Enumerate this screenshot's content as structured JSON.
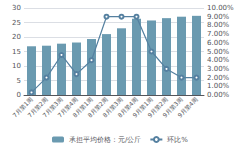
{
  "chart_data": {
    "type": "bar",
    "categories": [
      "7月第1周",
      "7月第2周",
      "7月第3周",
      "7月第4周",
      "8月第1周",
      "8月第2周",
      "8月第3周",
      "8月第4周",
      "9月第1周",
      "9月第2周",
      "9月第3周",
      "9月第4周"
    ],
    "series": [
      {
        "name": "承担平均价格：元/公斤",
        "type": "bar",
        "color": "#6a9ab0",
        "values": [
          16.8,
          17.0,
          17.7,
          18.1,
          19.3,
          21.0,
          23.0,
          26.3,
          25.7,
          26.5,
          27.0,
          27.3
        ]
      },
      {
        "name": "环比%",
        "type": "line",
        "axis": "y2",
        "color": "#5580a0",
        "marker": "circle",
        "values": [
          0.3,
          2.0,
          4.6,
          2.4,
          4.0,
          9.0,
          9.0,
          9.0,
          5.0,
          3.0,
          2.0,
          2.0
        ]
      }
    ],
    "ylim": [
      0,
      30
    ],
    "yticks": [
      0,
      5,
      10,
      15,
      20,
      25,
      30
    ],
    "y2lim": [
      0,
      10
    ],
    "y2ticks": [
      {
        "value": 0,
        "label": "0.00%"
      },
      {
        "value": 1,
        "label": "1.00%"
      },
      {
        "value": 2,
        "label": "2.00%"
      },
      {
        "value": 3,
        "label": "3.00%"
      },
      {
        "value": 4,
        "label": "4.00%"
      },
      {
        "value": 5,
        "label": "5.00%"
      },
      {
        "value": 6,
        "label": "6.00%"
      },
      {
        "value": 7,
        "label": "7.00%"
      },
      {
        "value": 8,
        "label": "8.00%"
      },
      {
        "value": 9,
        "label": "9.00%"
      },
      {
        "value": 10,
        "label": "10.00%"
      }
    ],
    "grid": true,
    "legend": "bottom"
  }
}
